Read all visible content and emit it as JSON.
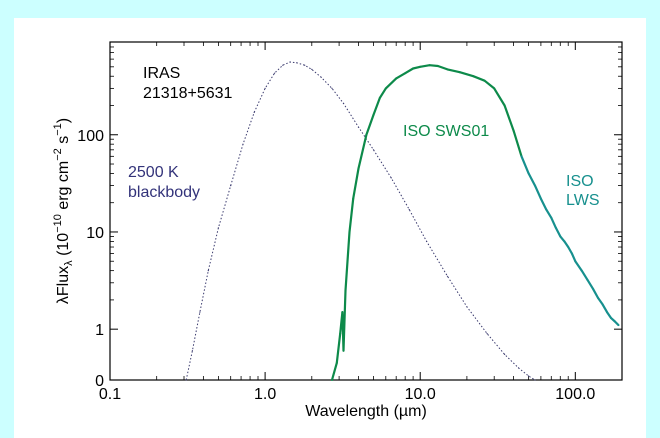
{
  "chart_data": {
    "type": "line",
    "title": "",
    "xlabel": "Wavelength (µm)",
    "ylabel_parts": [
      "λFlux",
      "λ",
      " (10",
      "−10",
      " erg cm",
      "−2",
      " s",
      "−1",
      ")"
    ],
    "x_scale": "log",
    "y_scale": "log",
    "xlim": [
      0.1,
      200
    ],
    "ylim": [
      0.3,
      900
    ],
    "x_ticks": [
      {
        "value": 0.1,
        "label": "0.1"
      },
      {
        "value": 1.0,
        "label": "1.0"
      },
      {
        "value": 10.0,
        "label": "10.0"
      },
      {
        "value": 100.0,
        "label": "100.0"
      }
    ],
    "y_ticks": [
      {
        "value": 0.3,
        "label": "0"
      },
      {
        "value": 1,
        "label": "1"
      },
      {
        "value": 10,
        "label": "10"
      },
      {
        "value": 100,
        "label": "100"
      }
    ],
    "grid": false,
    "annotations": {
      "object": [
        "IRAS",
        "21318+5631"
      ],
      "blackbody": [
        "2500 K",
        "blackbody"
      ],
      "sws": [
        "ISO SWS01"
      ],
      "lws": [
        "ISO",
        "LWS"
      ]
    },
    "series": [
      {
        "color": "#3a3a6e",
        "style": "dotted",
        "x": [
          0.31,
          0.34,
          0.38,
          0.43,
          0.5,
          0.6,
          0.72,
          0.85,
          1.0,
          1.15,
          1.3,
          1.45,
          1.6,
          1.8,
          2.0,
          2.3,
          2.7,
          3.2,
          4.0,
          5.0,
          6.5,
          8.5,
          11,
          15,
          20,
          27,
          35,
          43,
          50,
          55
        ],
        "y": [
          0.3,
          0.6,
          1.5,
          4,
          11,
          30,
          80,
          170,
          300,
          430,
          520,
          560,
          550,
          520,
          470,
          390,
          300,
          210,
          120,
          70,
          36,
          17,
          8,
          3.5,
          1.7,
          0.9,
          0.55,
          0.4,
          0.33,
          0.3
        ]
      },
      {
        "color": "#0d8a4a",
        "style": "solid",
        "x": [
          2.7,
          2.9,
          3.05,
          3.15,
          3.2,
          3.3,
          3.4,
          3.5,
          3.7,
          4.0,
          4.5,
          5.0,
          5.5,
          6.0,
          7.0,
          8.0,
          9.0,
          10.0,
          11.5,
          13.0,
          15.0,
          18.0,
          22.0,
          26.0,
          30.0,
          35.0,
          40.0,
          45.0
        ],
        "y": [
          0.3,
          0.45,
          0.9,
          1.5,
          0.6,
          2.5,
          5,
          10,
          22,
          45,
          100,
          160,
          240,
          300,
          380,
          430,
          480,
          500,
          520,
          510,
          470,
          440,
          400,
          360,
          300,
          200,
          110,
          60
        ]
      },
      {
        "color": "#17908e",
        "style": "solid",
        "x": [
          45,
          50,
          55,
          60,
          65,
          70,
          75,
          80,
          85,
          90,
          95,
          100,
          110,
          120,
          130,
          140,
          150,
          160,
          170,
          180,
          190
        ],
        "y": [
          60,
          40,
          30,
          22,
          17,
          14,
          11,
          9,
          8,
          7,
          6,
          5,
          4,
          3.2,
          2.6,
          2.1,
          1.8,
          1.5,
          1.3,
          1.2,
          1.1
        ]
      }
    ]
  }
}
